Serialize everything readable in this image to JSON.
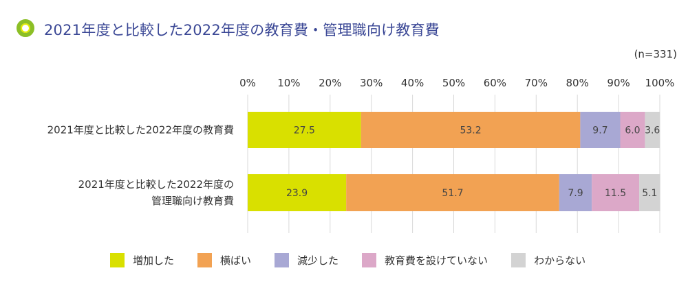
{
  "title": "2021年度と比較した2022年度の教育費・管理職向け教育費",
  "sample": "(n=331)",
  "chart_data": {
    "type": "bar",
    "orientation": "horizontal-stacked-100",
    "title": "2021年度と比較した2022年度の教育費・管理職向け教育費",
    "categories": [
      [
        "2021年度と比較した2022年度の教育費"
      ],
      [
        "2021年度と比較した2022年度の",
        "管理職向け教育費"
      ]
    ],
    "xlim": [
      0,
      100
    ],
    "ticks": [
      "0%",
      "10%",
      "20%",
      "30%",
      "40%",
      "50%",
      "60%",
      "70%",
      "80%",
      "90%",
      "100%"
    ],
    "grid": true,
    "legend_position": "bottom",
    "series": [
      {
        "name": "増加した",
        "color": "#d9e000",
        "values": [
          27.5,
          23.9
        ]
      },
      {
        "name": "横ばい",
        "color": "#f2a253",
        "values": [
          53.2,
          51.7
        ]
      },
      {
        "name": "減少した",
        "color": "#a8a8d4",
        "values": [
          9.7,
          7.9
        ]
      },
      {
        "name": "教育費を設けていない",
        "color": "#dca8c8",
        "values": [
          6.0,
          11.5
        ]
      },
      {
        "name": "わからない",
        "color": "#d3d3d3",
        "values": [
          3.6,
          5.1
        ]
      }
    ]
  }
}
